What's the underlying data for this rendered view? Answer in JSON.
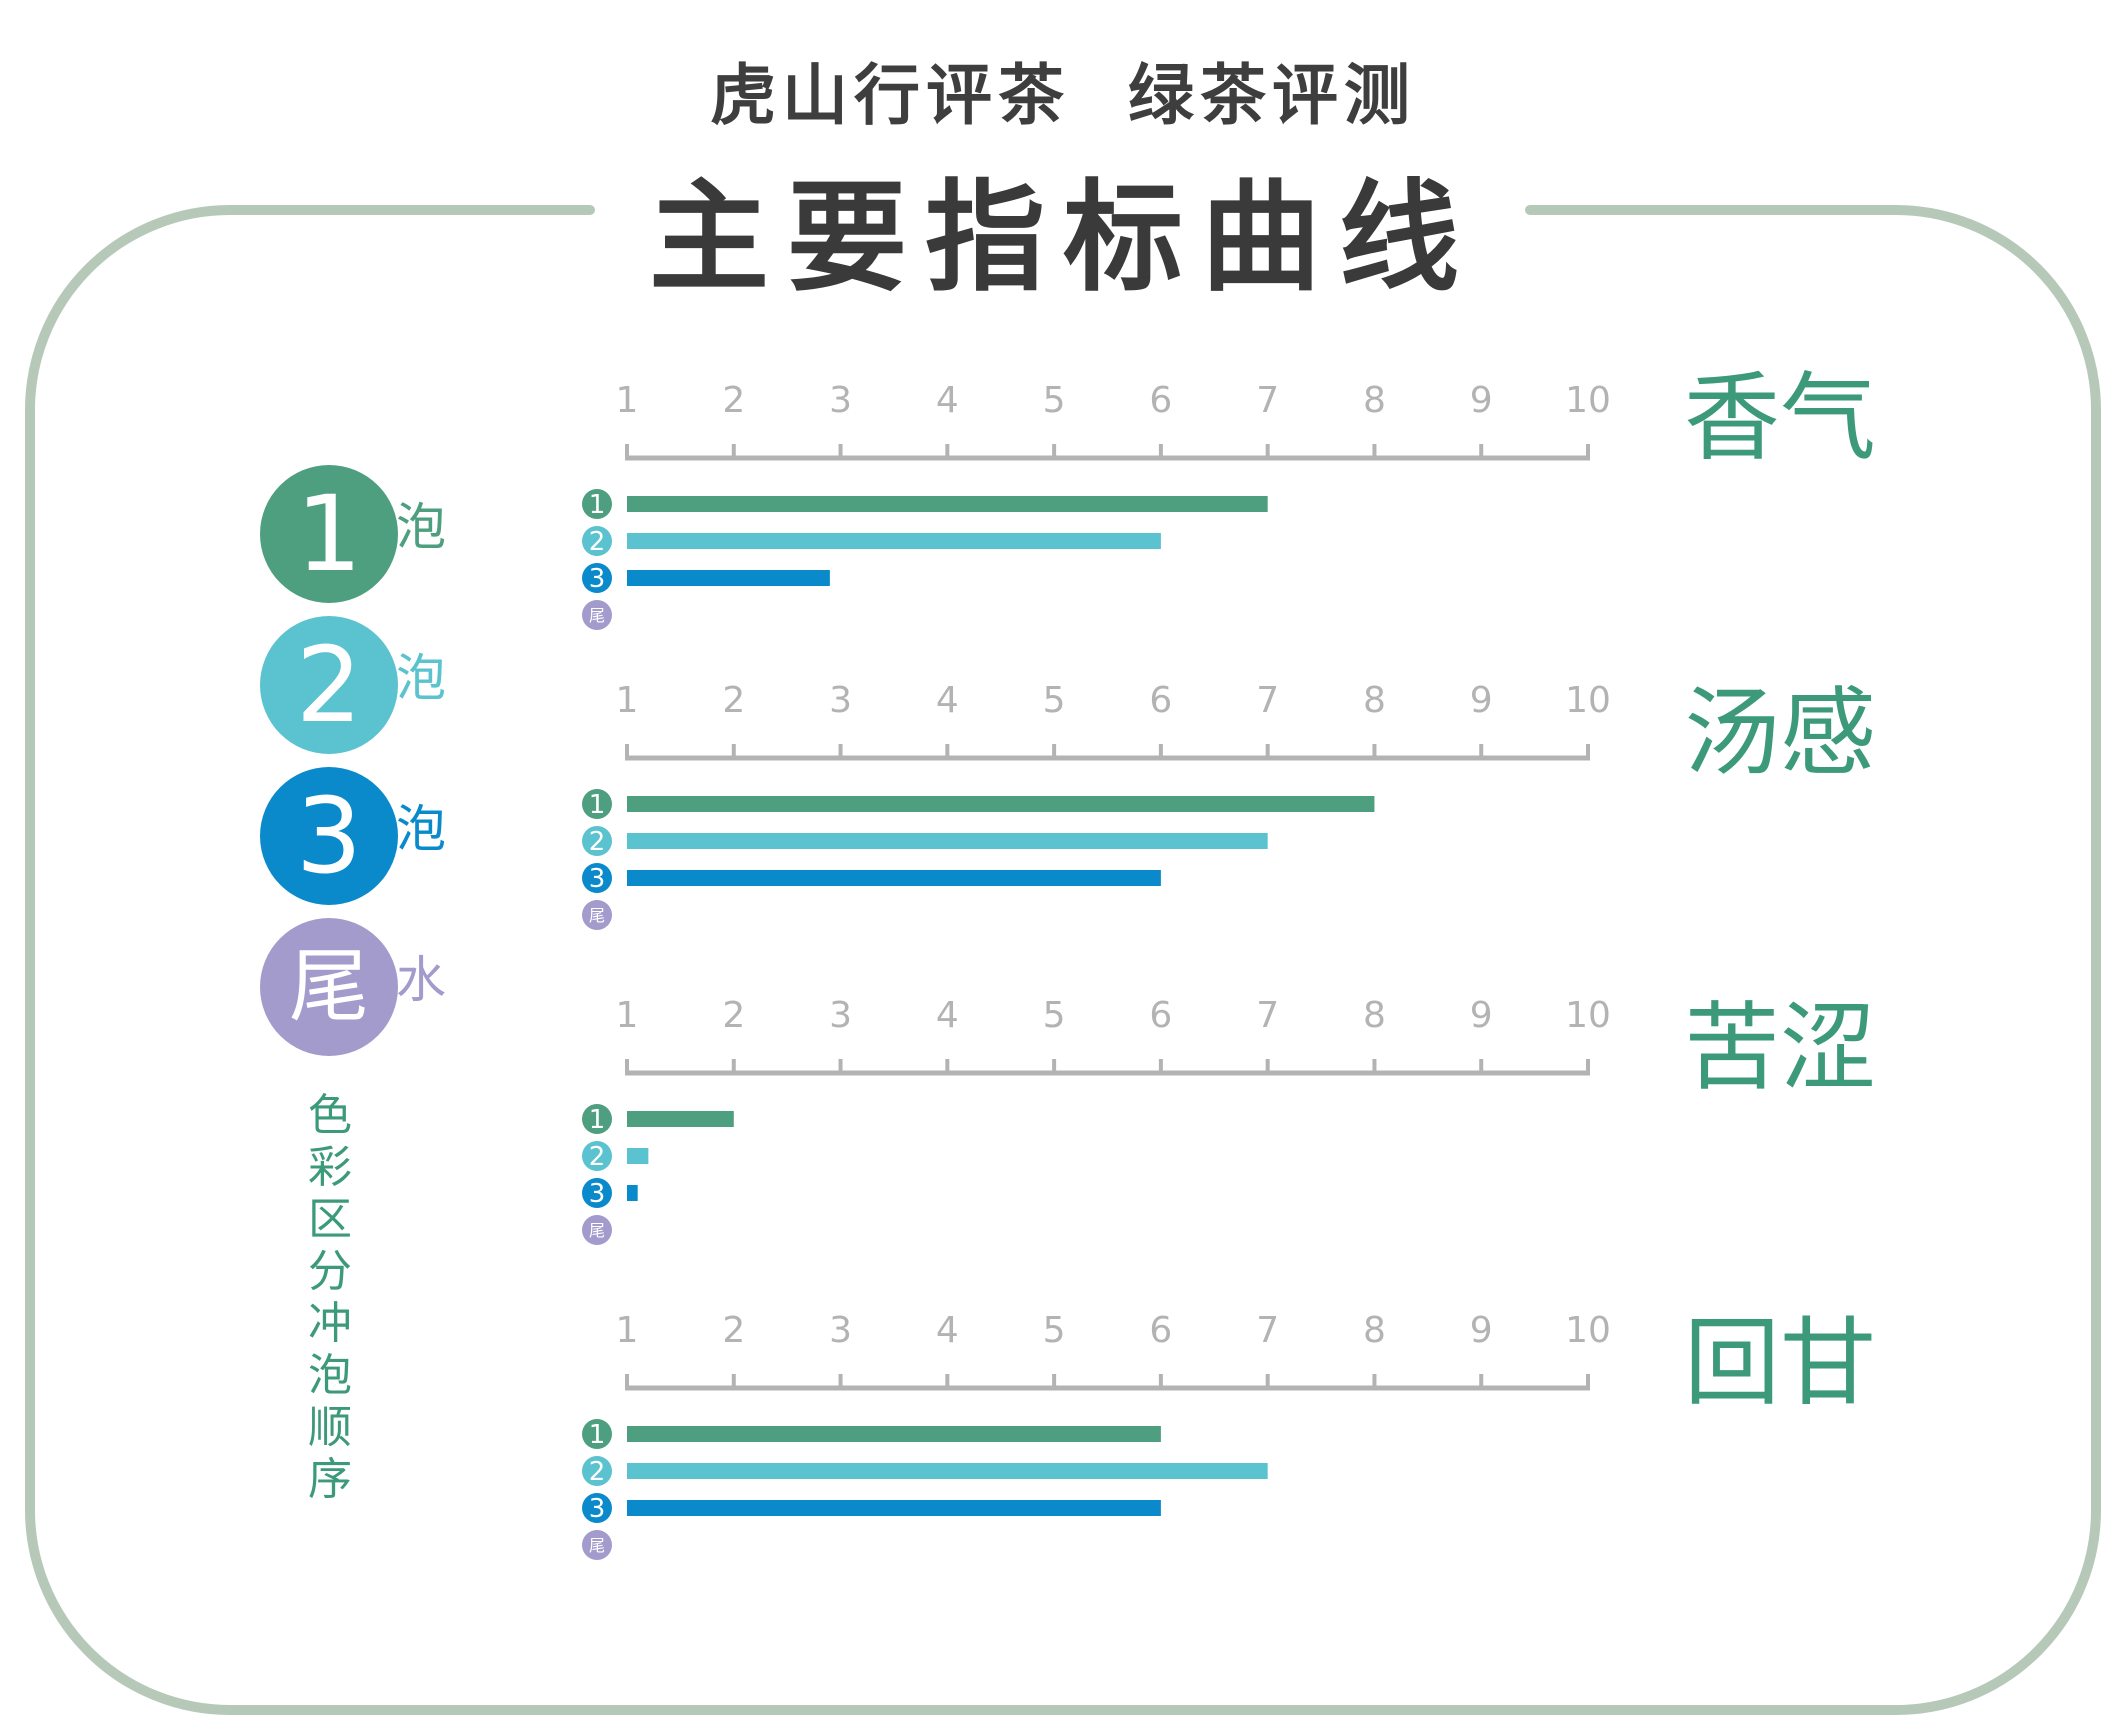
{
  "header": {
    "subtitle": "虎山行评茶  绿茶评测",
    "title": "主要指标曲线"
  },
  "legend": {
    "items": [
      {
        "badge": "1",
        "suffix": "泡",
        "color": "#4e9e80"
      },
      {
        "badge": "2",
        "suffix": "泡",
        "color": "#5bc2cf"
      },
      {
        "badge": "3",
        "suffix": "泡",
        "color": "#0a8acb"
      },
      {
        "badge": "尾",
        "suffix": "水",
        "color": "#a39bcc"
      }
    ],
    "note": "色彩区分冲泡顺序"
  },
  "colors": {
    "frame": "#b6c9b8",
    "axis": "#b3b3b3",
    "tick_label": "#b3b3b3",
    "title_accent": "#3c9a7a"
  },
  "chart_data": [
    {
      "type": "bar",
      "title": "香气",
      "xlim": [
        1,
        10
      ],
      "ticks": [
        1,
        2,
        3,
        4,
        5,
        6,
        7,
        8,
        9,
        10
      ],
      "series": [
        {
          "name": "1",
          "value": 7
        },
        {
          "name": "2",
          "value": 6
        },
        {
          "name": "3",
          "value": 2.9
        },
        {
          "name": "尾",
          "value": null
        }
      ]
    },
    {
      "type": "bar",
      "title": "汤感",
      "xlim": [
        1,
        10
      ],
      "ticks": [
        1,
        2,
        3,
        4,
        5,
        6,
        7,
        8,
        9,
        10
      ],
      "series": [
        {
          "name": "1",
          "value": 8
        },
        {
          "name": "2",
          "value": 7
        },
        {
          "name": "3",
          "value": 6
        },
        {
          "name": "尾",
          "value": null
        }
      ]
    },
    {
      "type": "bar",
      "title": "苦涩",
      "xlim": [
        1,
        10
      ],
      "ticks": [
        1,
        2,
        3,
        4,
        5,
        6,
        7,
        8,
        9,
        10
      ],
      "series": [
        {
          "name": "1",
          "value": 2
        },
        {
          "name": "2",
          "value": 1.2
        },
        {
          "name": "3",
          "value": 1.1
        },
        {
          "name": "尾",
          "value": null
        }
      ]
    },
    {
      "type": "bar",
      "title": "回甘",
      "xlim": [
        1,
        10
      ],
      "ticks": [
        1,
        2,
        3,
        4,
        5,
        6,
        7,
        8,
        9,
        10
      ],
      "series": [
        {
          "name": "1",
          "value": 6
        },
        {
          "name": "2",
          "value": 7
        },
        {
          "name": "3",
          "value": 6
        },
        {
          "name": "尾",
          "value": null
        }
      ]
    }
  ]
}
